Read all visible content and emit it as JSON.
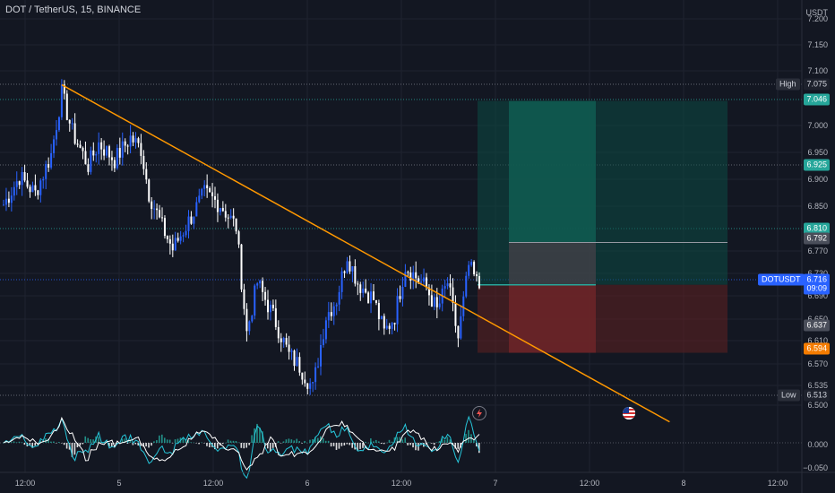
{
  "header": {
    "title": "DOT / TetherUS, 15, BINANCE"
  },
  "price_axis": {
    "unit": "USDT",
    "labels": [
      "7.200",
      "7.150",
      "7.100",
      "7.000",
      "6.950",
      "6.900",
      "6.850",
      "6.770",
      "6.730",
      "6.690",
      "6.650",
      "6.610",
      "6.570",
      "6.535",
      "6.500",
      "0.000",
      "−0.050"
    ]
  },
  "badges": {
    "high_label": "High",
    "high_value": "7.075",
    "target_top": "7.046",
    "target_mid": "6.925",
    "level_green": "6.810",
    "entry_grey": "6.792",
    "symbol": "DOTUSDT",
    "last_price": "6.716",
    "countdown": "09:09",
    "level_grey2": "6.637",
    "stop": "6.594",
    "low_label": "Low",
    "low_value": "6.513"
  },
  "time_axis": {
    "labels": [
      "12:00",
      "5",
      "12:00",
      "6",
      "12:00",
      "7",
      "12:00",
      "8",
      "12:00"
    ]
  },
  "icons": {
    "event1": "lightning-icon",
    "event2": "us-flag-icon"
  },
  "colors": {
    "up": "#2962ff",
    "down": "#ffffff",
    "trend": "#ff9800",
    "bg": "#131722"
  },
  "chart_data": {
    "type": "candlestick",
    "title": "DOT / TetherUS, 15, BINANCE",
    "y_unit": "USDT",
    "y_range": [
      6.47,
      7.22
    ],
    "anchor_points": [
      {
        "i": 0,
        "p": 6.86
      },
      {
        "i": 6,
        "p": 6.91
      },
      {
        "i": 12,
        "p": 6.88
      },
      {
        "i": 18,
        "p": 6.95
      },
      {
        "i": 22,
        "p": 7.06
      },
      {
        "i": 26,
        "p": 6.99
      },
      {
        "i": 32,
        "p": 6.93
      },
      {
        "i": 36,
        "p": 6.97
      },
      {
        "i": 42,
        "p": 6.94
      },
      {
        "i": 48,
        "p": 6.98
      },
      {
        "i": 52,
        "p": 6.96
      },
      {
        "i": 55,
        "p": 6.88
      },
      {
        "i": 60,
        "p": 6.82
      },
      {
        "i": 64,
        "p": 6.78
      },
      {
        "i": 70,
        "p": 6.83
      },
      {
        "i": 76,
        "p": 6.88
      },
      {
        "i": 82,
        "p": 6.86
      },
      {
        "i": 88,
        "p": 6.82
      },
      {
        "i": 92,
        "p": 6.63
      },
      {
        "i": 96,
        "p": 6.72
      },
      {
        "i": 102,
        "p": 6.66
      },
      {
        "i": 108,
        "p": 6.59
      },
      {
        "i": 112,
        "p": 6.57
      },
      {
        "i": 117,
        "p": 6.53
      },
      {
        "i": 122,
        "p": 6.66
      },
      {
        "i": 126,
        "p": 6.69
      },
      {
        "i": 130,
        "p": 6.77
      },
      {
        "i": 134,
        "p": 6.72
      },
      {
        "i": 140,
        "p": 6.69
      },
      {
        "i": 144,
        "p": 6.63
      },
      {
        "i": 148,
        "p": 6.66
      },
      {
        "i": 152,
        "p": 6.75
      },
      {
        "i": 156,
        "p": 6.73
      },
      {
        "i": 160,
        "p": 6.71
      },
      {
        "i": 164,
        "p": 6.67
      },
      {
        "i": 168,
        "p": 6.72
      },
      {
        "i": 172,
        "p": 6.62
      },
      {
        "i": 176,
        "p": 6.75
      },
      {
        "i": 180,
        "p": 6.71
      }
    ],
    "trendline": {
      "from": {
        "i": 22,
        "p": 7.075
      },
      "to": {
        "i": 252,
        "p": 6.47
      }
    },
    "high": 7.075,
    "low": 6.513,
    "position": {
      "entry": 6.792,
      "target": 7.046,
      "stop": 6.594,
      "type": "long"
    },
    "indicator": {
      "type": "macd",
      "levels": [
        "0.000",
        "−0.050"
      ]
    }
  }
}
